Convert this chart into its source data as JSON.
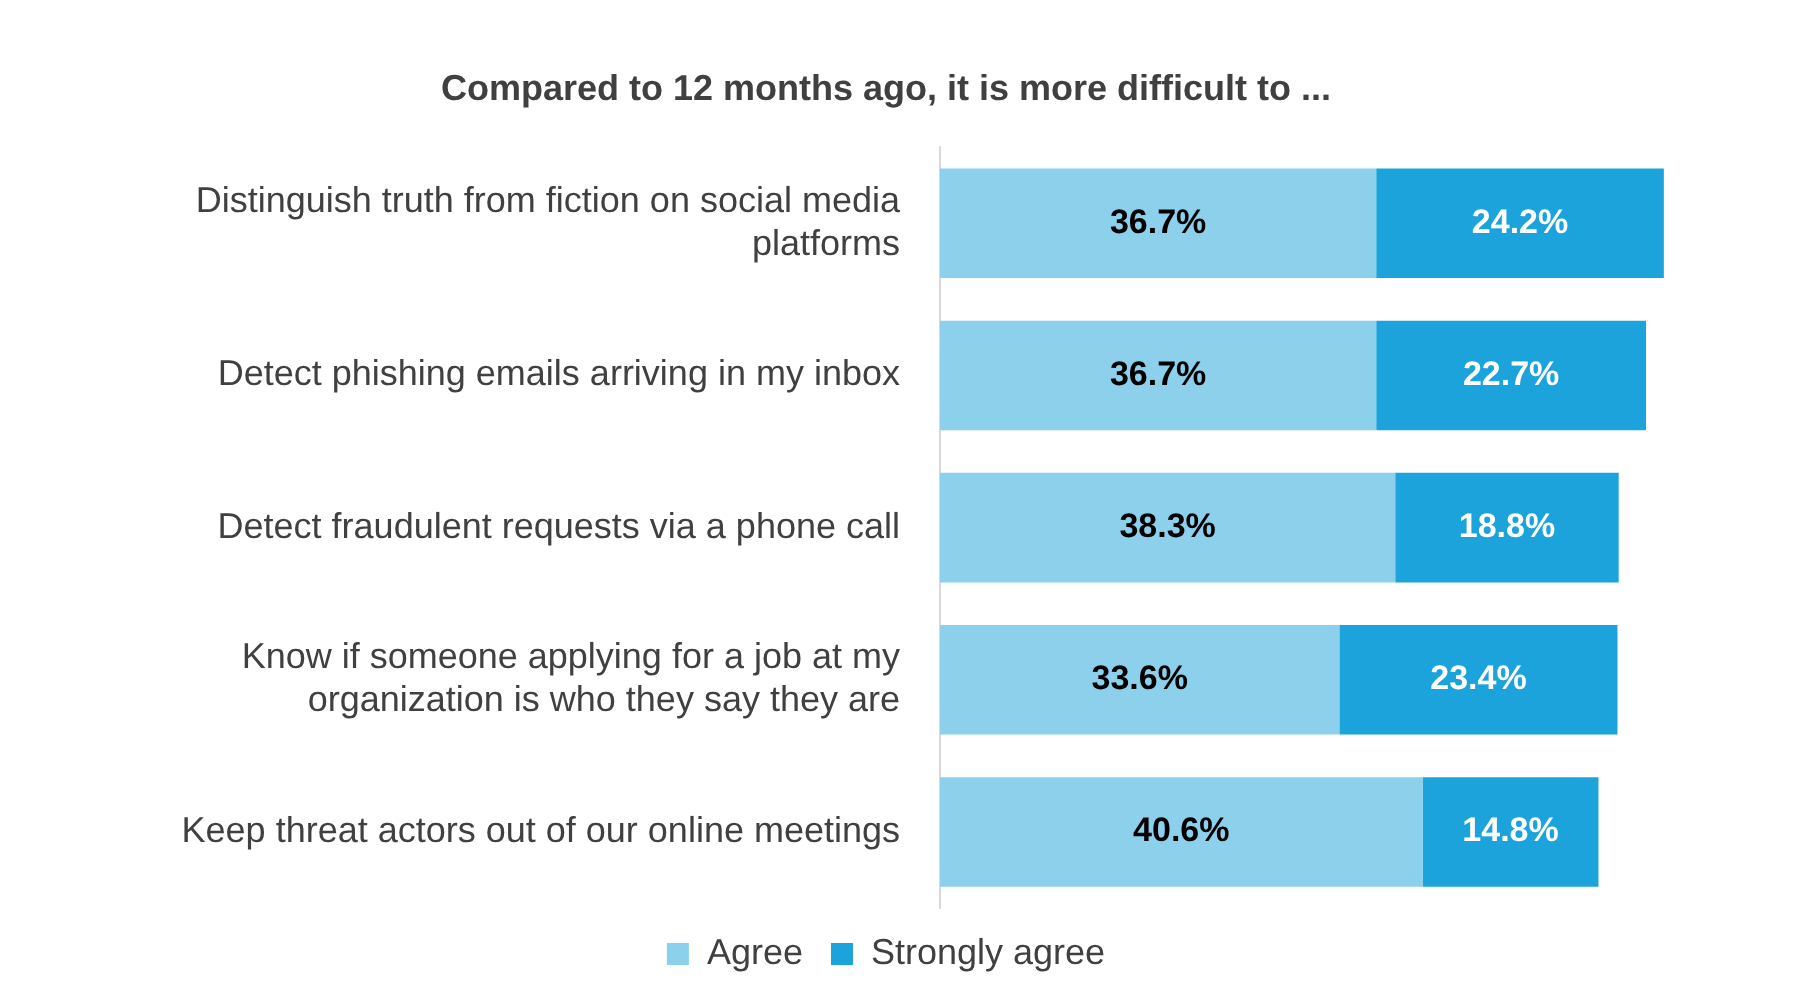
{
  "chart_data": {
    "type": "bar",
    "orientation": "horizontal",
    "stacked": true,
    "title": "Compared to 12 months ago, it is more difficult to ...",
    "categories": [
      "Distinguish truth from fiction on social media platforms",
      "Detect phishing emails arriving in my inbox",
      "Detect fraudulent requests via a phone call",
      "Know if someone applying for a job at my organization is who they say they are",
      "Keep threat actors out of our online meetings"
    ],
    "series": [
      {
        "name": "Agree",
        "color": "#8dd0ec",
        "values": [
          36.7,
          36.7,
          38.3,
          33.6,
          40.6
        ],
        "value_labels": [
          "36.7%",
          "36.7%",
          "38.3%",
          "33.6%",
          "40.6%"
        ]
      },
      {
        "name": "Strongly agree",
        "color": "#1ca3dc",
        "values": [
          24.2,
          22.7,
          18.8,
          23.4,
          14.8
        ],
        "value_labels": [
          "24.2%",
          "22.7%",
          "18.8%",
          "23.4%",
          "14.8%"
        ]
      }
    ],
    "tick_labels": "y",
    "legend": "bottom"
  }
}
